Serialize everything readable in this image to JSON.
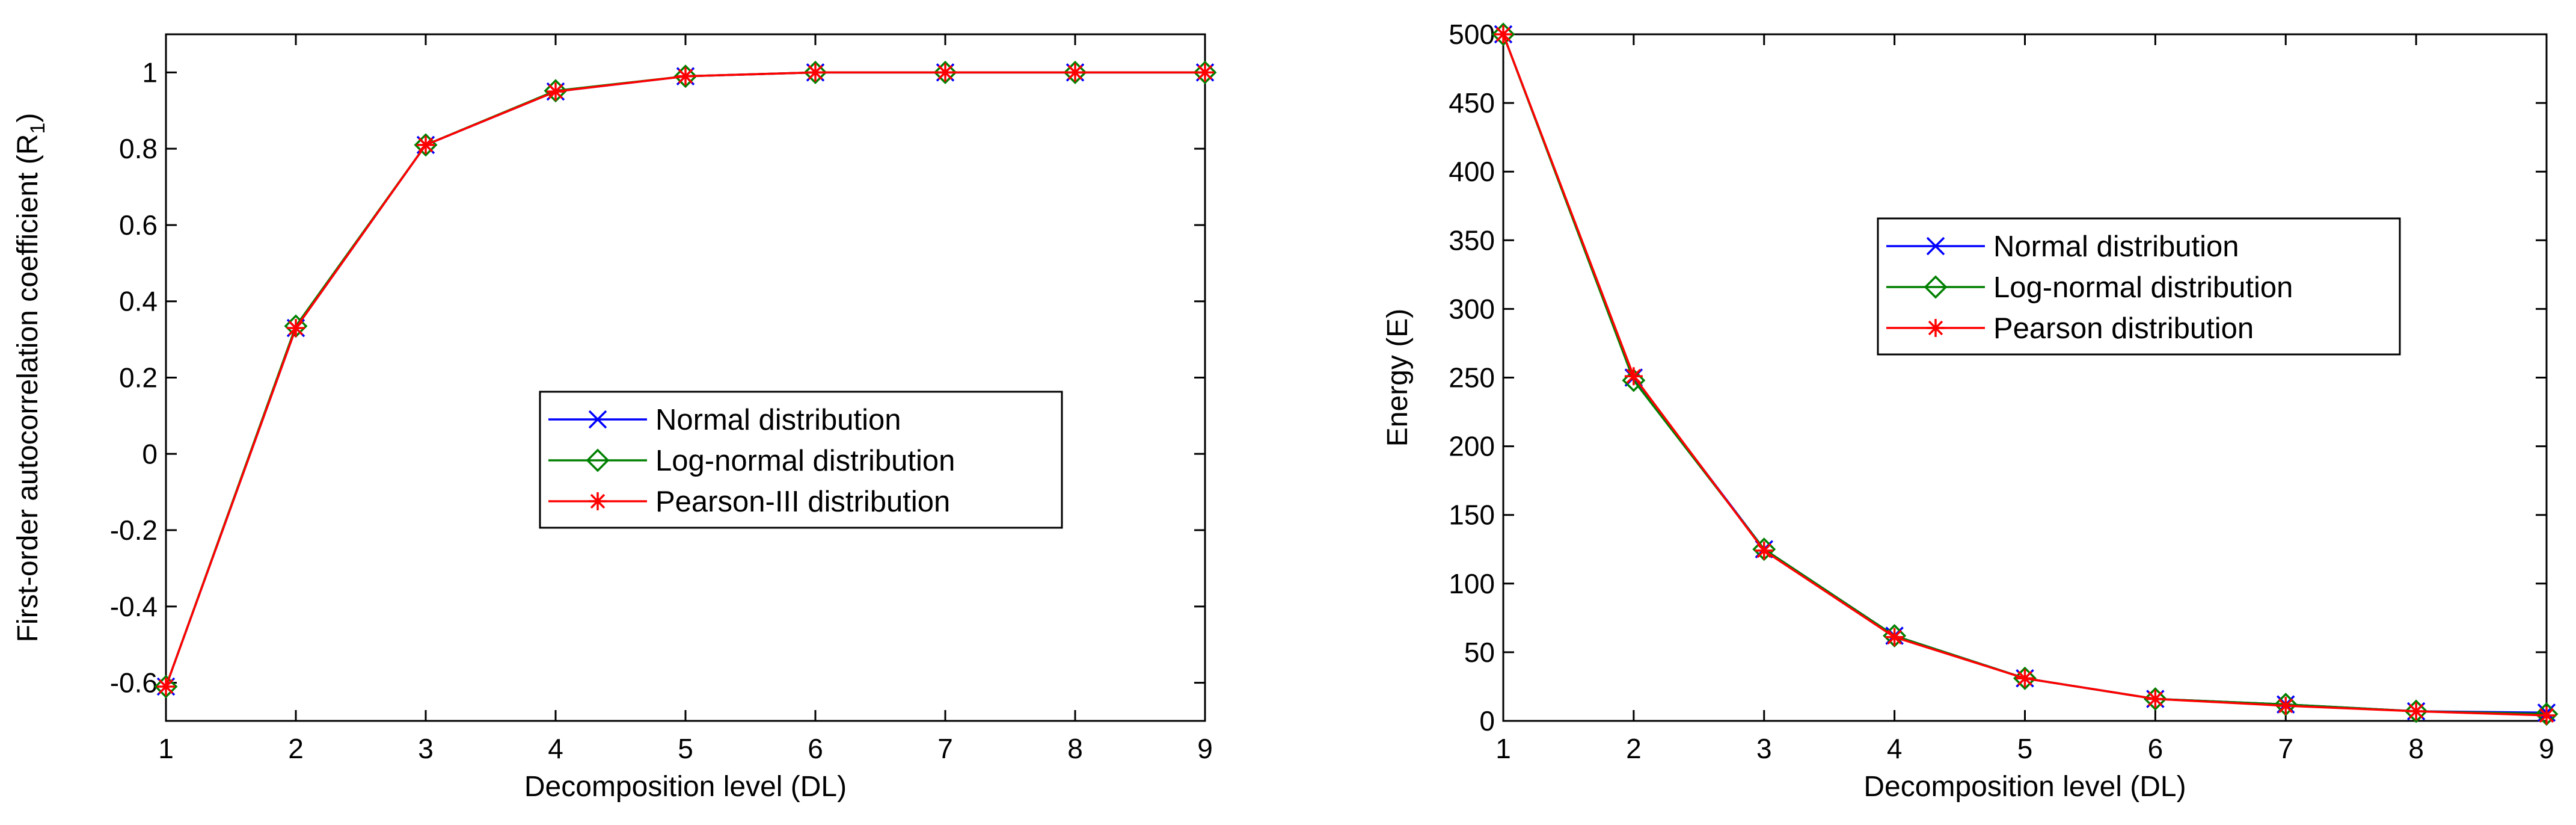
{
  "chart_data": [
    {
      "type": "line",
      "title": "",
      "xlabel": "Decomposition level (DL)",
      "ylabel_main": "First-order autocorrelation coefficient (R",
      "ylabel_sub": "1",
      "ylabel_close": ")",
      "xlim": [
        1,
        9
      ],
      "ylim": [
        -0.7,
        1.1
      ],
      "xticks": [
        1,
        2,
        3,
        4,
        5,
        6,
        7,
        8,
        9
      ],
      "yticks": [
        -0.6,
        -0.4,
        -0.2,
        0,
        0.2,
        0.4,
        0.6,
        0.8,
        1
      ],
      "ytick_labels": [
        "-0.6",
        "-0.4",
        "-0.2",
        "0",
        "0.2",
        "0.4",
        "0.6",
        "0.8",
        "1"
      ],
      "grid": false,
      "legend_position": "center-right",
      "x": [
        1,
        2,
        3,
        4,
        5,
        6,
        7,
        8,
        9
      ],
      "series": [
        {
          "name": "Normal distribution",
          "color": "#0000ff",
          "marker": "x",
          "values": [
            -0.61,
            0.33,
            0.81,
            0.95,
            0.99,
            1.0,
            1.0,
            1.0,
            1.0
          ]
        },
        {
          "name": "Log-normal distribution",
          "color": "#008000",
          "marker": "diamond",
          "values": [
            -0.61,
            0.335,
            0.81,
            0.952,
            0.99,
            1.0,
            1.0,
            1.0,
            1.0
          ]
        },
        {
          "name": "Pearson-III distribution",
          "color": "#ff0000",
          "marker": "star",
          "values": [
            -0.61,
            0.33,
            0.81,
            0.95,
            0.99,
            1.0,
            1.0,
            1.0,
            1.0
          ]
        }
      ]
    },
    {
      "type": "line",
      "title": "",
      "xlabel": "Decomposition level (DL)",
      "ylabel_main": "Energy (E)",
      "ylabel_sub": "",
      "ylabel_close": "",
      "xlim": [
        1,
        9
      ],
      "ylim": [
        0,
        500
      ],
      "xticks": [
        1,
        2,
        3,
        4,
        5,
        6,
        7,
        8,
        9
      ],
      "yticks": [
        0,
        50,
        100,
        150,
        200,
        250,
        300,
        350,
        400,
        450,
        500
      ],
      "ytick_labels": [
        "0",
        "50",
        "100",
        "150",
        "200",
        "250",
        "300",
        "350",
        "400",
        "450",
        "500"
      ],
      "grid": false,
      "legend_position": "top-right",
      "x": [
        1,
        2,
        3,
        4,
        5,
        6,
        7,
        8,
        9
      ],
      "series": [
        {
          "name": "Normal distribution",
          "color": "#0000ff",
          "marker": "x",
          "values": [
            500,
            250,
            125,
            62,
            31,
            16,
            12,
            7,
            6
          ]
        },
        {
          "name": "Log-normal distribution",
          "color": "#008000",
          "marker": "diamond",
          "values": [
            500,
            248,
            125,
            62,
            31,
            16,
            12,
            7,
            5
          ]
        },
        {
          "name": "Pearson distribution",
          "color": "#ff0000",
          "marker": "star",
          "values": [
            500,
            251,
            124,
            61,
            31,
            16,
            11,
            7,
            4
          ]
        }
      ]
    }
  ]
}
